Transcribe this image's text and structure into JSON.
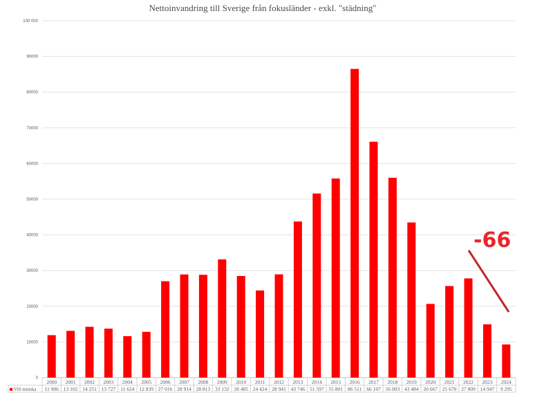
{
  "chart_data": {
    "type": "bar",
    "title": "Nettoinvandring till Sverige från fokusländer - exkl. \"städning\"",
    "categories": [
      "2000",
      "2001",
      "2002",
      "2003",
      "2004",
      "2005",
      "2006",
      "2007",
      "2008",
      "2009",
      "2010",
      "2011",
      "2012",
      "2013",
      "2014",
      "2015",
      "2016",
      "2017",
      "2018",
      "2019",
      "2020",
      "2021",
      "2022",
      "2023",
      "2024"
    ],
    "series": [
      {
        "name": "Vill minska",
        "color": "#ff0000",
        "values": [
          11906,
          13102,
          14251,
          13727,
          11624,
          12839,
          27016,
          28914,
          28813,
          33132,
          28485,
          24424,
          28941,
          43746,
          51597,
          55801,
          86511,
          66107,
          56003,
          43484,
          20667,
          25670,
          27809,
          14947,
          9295
        ]
      }
    ],
    "value_labels": [
      "11 906",
      "13 102",
      "14 251",
      "13 727",
      "11 624",
      "12 839",
      "27 016",
      "28 914",
      "28 813",
      "33 132",
      "28 485",
      "24 424",
      "28 941",
      "43 746",
      "51 597",
      "55 801",
      "86 511",
      "66 107",
      "56 003",
      "43 484",
      "20 667",
      "25 670",
      "27 809",
      "14 947",
      "9 295"
    ],
    "ylim": [
      0,
      100000
    ],
    "yticks": [
      0,
      10000,
      20000,
      30000,
      40000,
      50000,
      60000,
      70000,
      80000,
      90000,
      100000
    ],
    "ytick_labels": [
      "0",
      "10000",
      "20000",
      "30000",
      "40000",
      "50000",
      "60000",
      "70000",
      "80000",
      "90000",
      "100 000"
    ],
    "grid": true,
    "legend": "data-table",
    "annotation": {
      "text": "-66",
      "color": "#e8262b"
    }
  }
}
